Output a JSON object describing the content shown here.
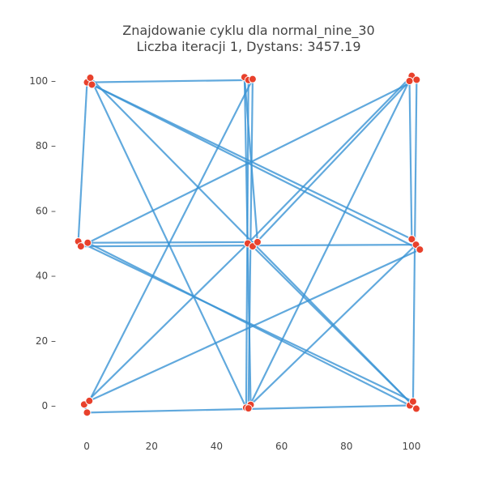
{
  "chart_data": {
    "type": "scatter",
    "title_lines": [
      "Znajdowanie cyklu dla normal_nine_30",
      "Liczba iteracji 1, Dystans: 3457.19"
    ],
    "xlabel": "",
    "ylabel": "",
    "xlim": [
      -8,
      108
    ],
    "ylim": [
      -9,
      107
    ],
    "x_ticks": [
      0,
      20,
      40,
      60,
      80,
      100
    ],
    "y_ticks": [
      0,
      20,
      40,
      60,
      80,
      100
    ],
    "grid": false,
    "legend": "none",
    "colors": {
      "edge": "#3a93d4",
      "point": "#e8412c"
    },
    "points": [
      {
        "x": 0.1,
        "y": 99.6
      },
      {
        "x": 1.1,
        "y": 101.0
      },
      {
        "x": 1.6,
        "y": 98.9
      },
      {
        "x": 48.6,
        "y": 101.2
      },
      {
        "x": 49.8,
        "y": 100.3
      },
      {
        "x": 51.1,
        "y": 100.6
      },
      {
        "x": 100.1,
        "y": 101.6
      },
      {
        "x": 101.6,
        "y": 100.4
      },
      {
        "x": 99.4,
        "y": 100.0
      },
      {
        "x": -2.6,
        "y": 50.6
      },
      {
        "x": -1.8,
        "y": 49.1
      },
      {
        "x": 0.3,
        "y": 50.2
      },
      {
        "x": 49.6,
        "y": 50.0
      },
      {
        "x": 51.1,
        "y": 49.1
      },
      {
        "x": 52.6,
        "y": 50.4
      },
      {
        "x": 100.1,
        "y": 51.3
      },
      {
        "x": 101.4,
        "y": 49.6
      },
      {
        "x": 102.6,
        "y": 48.1
      },
      {
        "x": -0.8,
        "y": 0.4
      },
      {
        "x": 0.8,
        "y": 1.5
      },
      {
        "x": 0.1,
        "y": -2.1
      },
      {
        "x": 49.1,
        "y": -0.6
      },
      {
        "x": 50.5,
        "y": 0.3
      },
      {
        "x": 49.8,
        "y": -0.8
      },
      {
        "x": 99.5,
        "y": 0.1
      },
      {
        "x": 101.5,
        "y": -0.9
      },
      {
        "x": 100.5,
        "y": 1.3
      }
    ],
    "tour": [
      0,
      4,
      21,
      1,
      25,
      13,
      8,
      15,
      2,
      17,
      19,
      5,
      23,
      6,
      12,
      18,
      20,
      24,
      11,
      14,
      3,
      22,
      16,
      10,
      7,
      26,
      9,
      0
    ]
  }
}
